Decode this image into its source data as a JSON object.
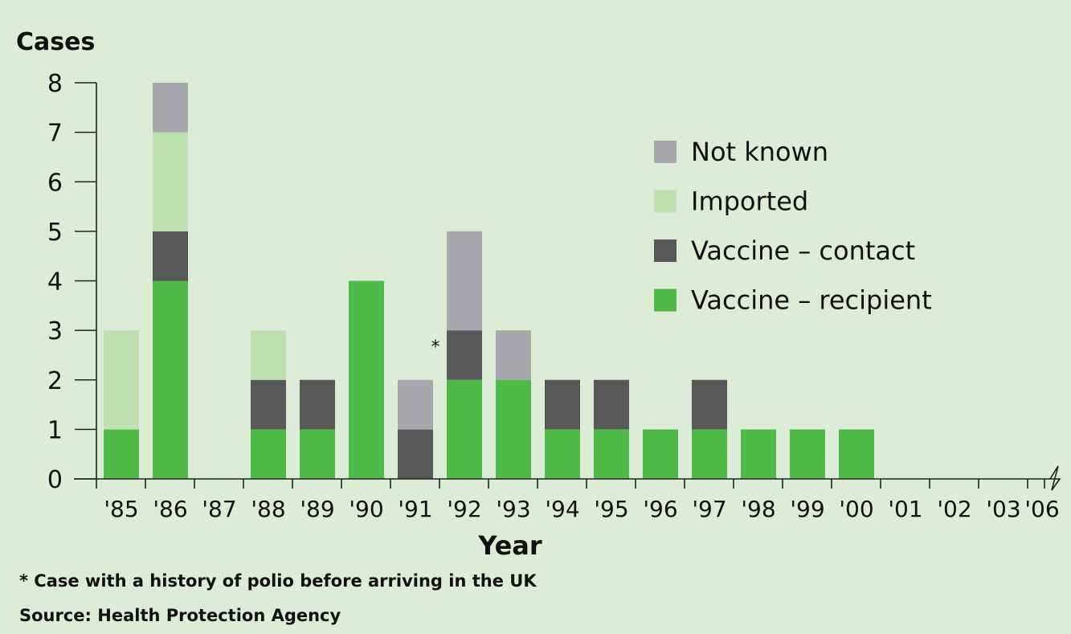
{
  "chart_data": {
    "type": "bar",
    "stacked": true,
    "ylabel": "Cases",
    "xlabel": "Year",
    "ylim": [
      0,
      8
    ],
    "yticks": [
      "0",
      "1",
      "2",
      "3",
      "4",
      "5",
      "6",
      "7",
      "8"
    ],
    "categories": [
      "'85",
      "'86",
      "'87",
      "'88",
      "'89",
      "'90",
      "'91",
      "'92",
      "'93",
      "'94",
      "'95",
      "'96",
      "'97",
      "'98",
      "'99",
      "'00",
      "'01",
      "'02",
      "'03",
      "'06"
    ],
    "axis_break_between": [
      "'03",
      "'06"
    ],
    "series": [
      {
        "name": "Vaccine – recipient",
        "color": "#4fba48",
        "values": [
          1,
          4,
          0,
          1,
          1,
          4,
          0,
          2,
          2,
          1,
          1,
          1,
          1,
          1,
          1,
          1,
          0,
          0,
          0,
          0
        ]
      },
      {
        "name": "Vaccine – contact",
        "color": "#58585a",
        "values": [
          0,
          1,
          0,
          1,
          1,
          0,
          1,
          1,
          0,
          1,
          1,
          0,
          1,
          0,
          0,
          0,
          0,
          0,
          0,
          0
        ]
      },
      {
        "name": "Imported",
        "color": "#bfe0b1",
        "values": [
          2,
          2,
          0,
          1,
          0,
          0,
          0,
          0,
          0,
          0,
          0,
          0,
          0,
          0,
          0,
          0,
          0,
          0,
          0,
          0
        ]
      },
      {
        "name": "Not known",
        "color": "#a8a9ad",
        "values": [
          0,
          1,
          0,
          0,
          0,
          0,
          1,
          2,
          1,
          0,
          0,
          0,
          0,
          0,
          0,
          0,
          0,
          0,
          0,
          0
        ]
      }
    ],
    "legend_order": [
      "Not known",
      "Imported",
      "Vaccine – contact",
      "Vaccine – recipient"
    ],
    "legend_position": "top-right",
    "annotation": {
      "text": "*",
      "category": "'92"
    }
  },
  "footnote": "* Case with a history of polio before arriving in the UK",
  "source": "Source: Health Protection Agency"
}
